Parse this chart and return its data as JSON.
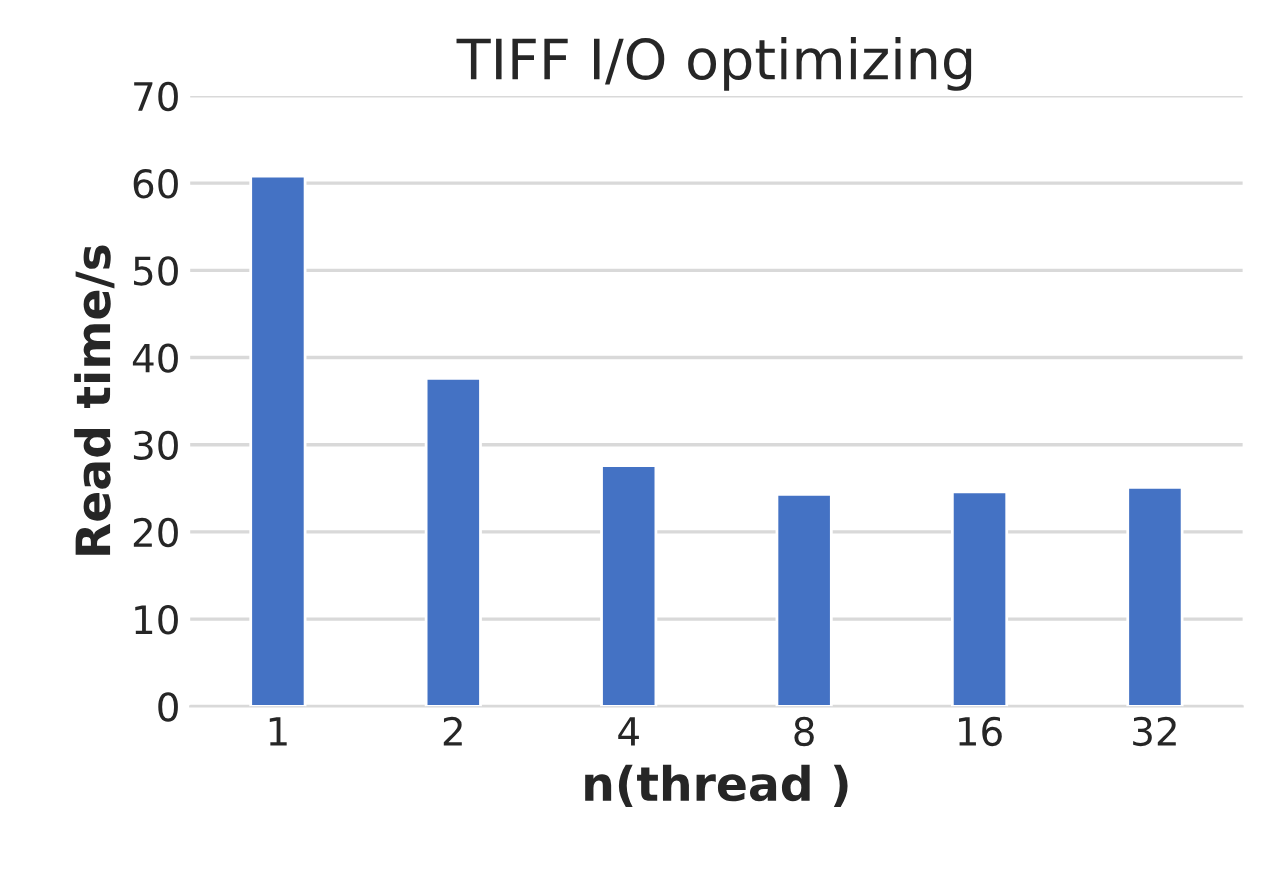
{
  "chart_data": {
    "type": "bar",
    "title": "TIFF I/O optimizing",
    "xlabel": "n(thread )",
    "ylabel": "Read time/s",
    "categories": [
      "1",
      "2",
      "4",
      "8",
      "16",
      "32"
    ],
    "values": [
      60.8,
      37.6,
      27.6,
      24.3,
      24.6,
      25.1
    ],
    "color": "#4472c4",
    "ylim": [
      0,
      70
    ],
    "yticks": [
      0,
      10,
      20,
      30,
      40,
      50,
      60,
      70
    ],
    "grid": "y"
  }
}
